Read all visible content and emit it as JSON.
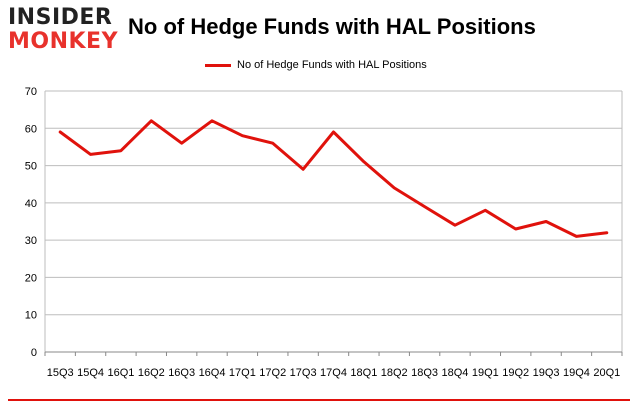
{
  "logo": {
    "line1": "INSIDER",
    "line2": "MONKEY"
  },
  "chart_data": {
    "type": "line",
    "title": "No of Hedge Funds with HAL Positions",
    "xlabel": "",
    "ylabel": "",
    "ylim": [
      0,
      70
    ],
    "yticks": [
      0,
      10,
      20,
      30,
      40,
      50,
      60,
      70
    ],
    "grid": true,
    "legend": "top-center",
    "categories": [
      "2015Q3",
      "2015Q4",
      "2016Q1",
      "2016Q2",
      "2016Q3",
      "2016Q4",
      "2017Q1",
      "2017Q2",
      "2017Q3",
      "2017Q4",
      "2018Q1",
      "2018Q2",
      "2018Q3",
      "2018Q4",
      "2019Q1",
      "2019Q2",
      "2019Q3",
      "2019Q4",
      "2020Q1"
    ],
    "tick_labels": [
      "15Q3",
      "15Q4",
      "16Q1",
      "16Q2",
      "16Q3",
      "16Q4",
      "17Q1",
      "17Q2",
      "17Q3",
      "17Q4",
      "18Q1",
      "18Q2",
      "18Q3",
      "18Q4",
      "19Q1",
      "19Q2",
      "19Q3",
      "19Q4",
      "20Q1"
    ],
    "series": [
      {
        "name": "No of Hedge Funds with HAL Positions",
        "color": "#e0120c",
        "values": [
          59,
          53,
          54,
          62,
          56,
          62,
          58,
          56,
          49,
          59,
          51,
          44,
          39,
          34,
          38,
          33,
          35,
          31,
          32
        ]
      }
    ]
  }
}
